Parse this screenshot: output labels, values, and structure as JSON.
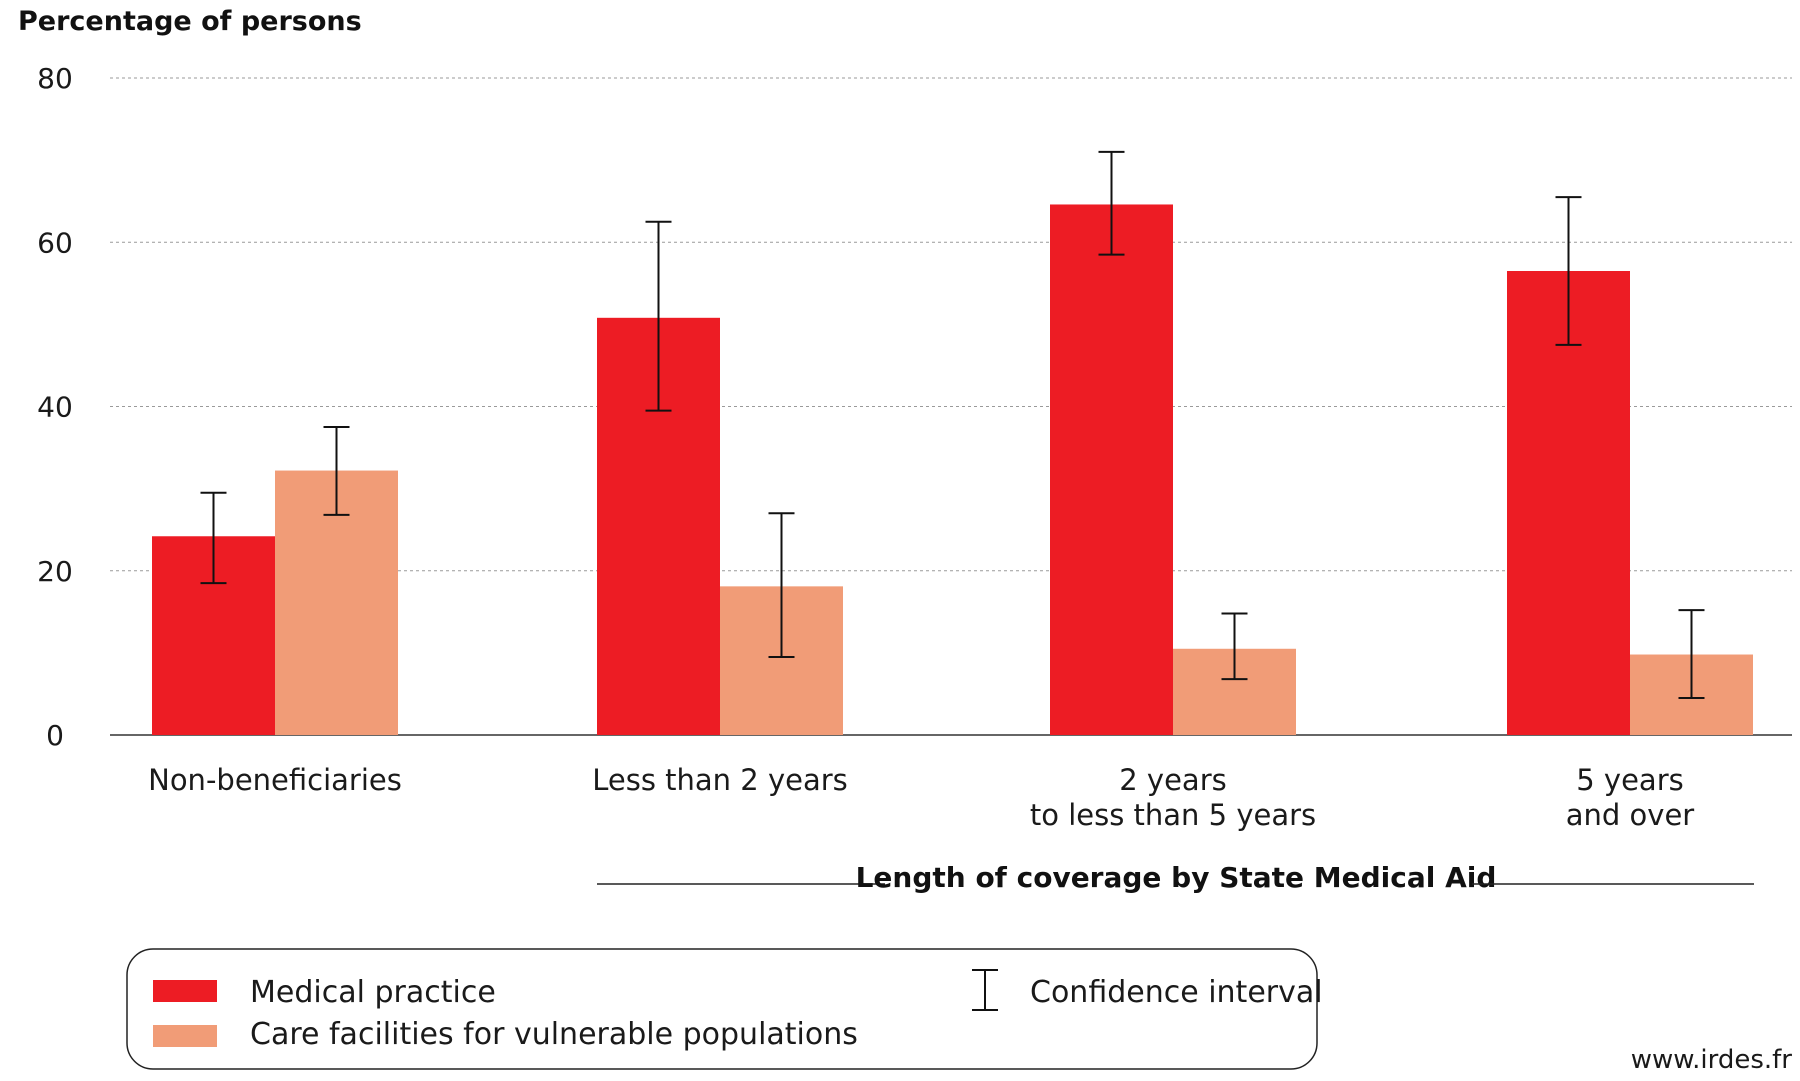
{
  "chart_data": {
    "type": "bar",
    "ylabel": "Percentage of persons",
    "xlabel": "Length of coverage by State Medical Aid",
    "ylim": [
      0,
      80
    ],
    "yticks": [
      0,
      20,
      40,
      60,
      80
    ],
    "grid": true,
    "legend_position": "bottom",
    "categories": [
      [
        "Non-beneficiaries"
      ],
      [
        "Less than 2 years"
      ],
      [
        "2 years",
        "to less than 5 years"
      ],
      [
        "5 years",
        "and over"
      ]
    ],
    "series": [
      {
        "name": "Medical practice",
        "color": "#ed1c24",
        "values": [
          24.2,
          50.8,
          64.6,
          56.5
        ],
        "ci_low": [
          18.5,
          39.5,
          58.5,
          47.5
        ],
        "ci_high": [
          29.5,
          62.5,
          71.0,
          65.5
        ]
      },
      {
        "name": "Care facilities for vulnerable populations",
        "color": "#f19c77",
        "values": [
          32.2,
          18.1,
          10.5,
          9.8
        ],
        "ci_low": [
          26.8,
          9.5,
          6.8,
          4.5
        ],
        "ci_high": [
          37.5,
          27.0,
          14.8,
          15.2
        ]
      }
    ],
    "ci_legend_label": "Confidence interval"
  },
  "source": "www.irdes.fr"
}
